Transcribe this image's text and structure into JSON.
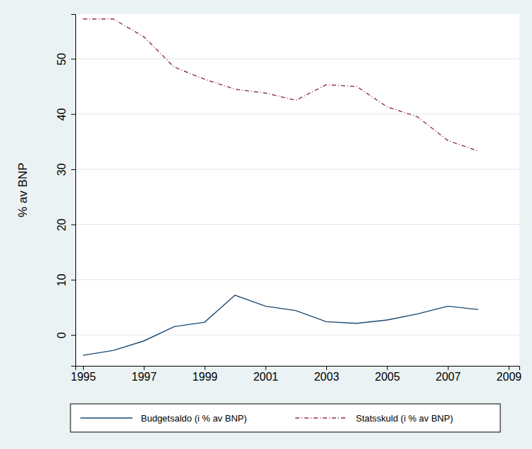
{
  "chart_data": {
    "type": "line",
    "y_label": "% av BNP",
    "x": [
      1995,
      1996,
      1997,
      1998,
      1999,
      2000,
      2001,
      2002,
      2003,
      2004,
      2005,
      2006,
      2007,
      2008
    ],
    "series": [
      {
        "name": "Budgetsaldo (i % av BNP)",
        "color": "#1a476f",
        "line_style": "solid",
        "marker": "none",
        "values": [
          -3.7,
          -2.8,
          -1.1,
          1.5,
          2.3,
          7.2,
          5.2,
          4.4,
          2.4,
          2.1,
          2.7,
          3.8,
          5.2,
          4.6
        ]
      },
      {
        "name": "Statsskuld (i % av BNP)",
        "color": "#90353b",
        "line_style": "dashdot",
        "marker": "none",
        "values": [
          57.2,
          57.2,
          54.0,
          48.5,
          46.3,
          44.5,
          43.8,
          42.5,
          45.3,
          45.0,
          41.3,
          39.5,
          35.2,
          33.3
        ]
      }
    ],
    "xlim": [
      1994.75,
      2009.35
    ],
    "xticks": [
      1995,
      1997,
      1999,
      2001,
      2003,
      2005,
      2007,
      2009
    ],
    "ylim": [
      -5.6,
      58.1
    ],
    "yticks": [
      0,
      10,
      20,
      30,
      40,
      50
    ],
    "grid": true,
    "legend": "bottom"
  }
}
